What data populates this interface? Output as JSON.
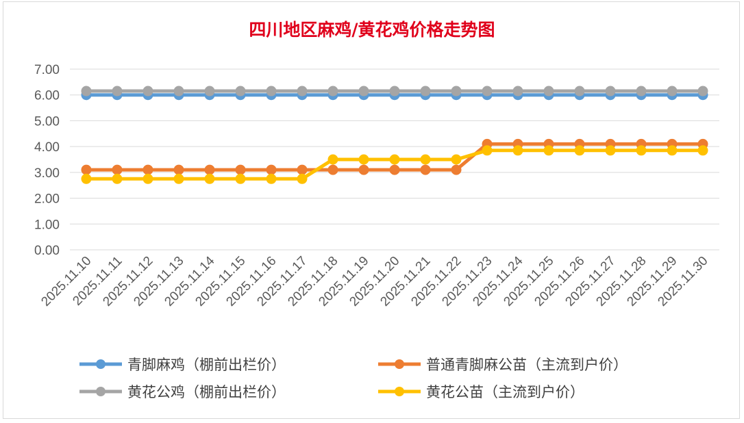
{
  "chart_data": {
    "type": "line",
    "title": "四川地区麻鸡/黄花鸡价格走势图",
    "xlabel": "",
    "ylabel": "",
    "ylim": [
      0,
      7
    ],
    "yticks": [
      "0.00",
      "1.00",
      "2.00",
      "3.00",
      "4.00",
      "5.00",
      "6.00",
      "7.00"
    ],
    "grid": "horizontal",
    "legend_position": "bottom",
    "categories": [
      "2025.11.10",
      "2025.11.11",
      "2025.11.12",
      "2025.11.13",
      "2025.11.14",
      "2025.11.15",
      "2025.11.16",
      "2025.11.17",
      "2025.11.18",
      "2025.11.19",
      "2025.11.20",
      "2025.11.21",
      "2025.11.22",
      "2025.11.23",
      "2025.11.24",
      "2025.11.25",
      "2025.11.26",
      "2025.11.27",
      "2025.11.28",
      "2025.11.29",
      "2025.11.30"
    ],
    "series": [
      {
        "name": "青脚麻鸡（棚前出栏价）",
        "color": "#5b9bd5",
        "values": [
          6.0,
          6.0,
          6.0,
          6.0,
          6.0,
          6.0,
          6.0,
          6.0,
          6.0,
          6.0,
          6.0,
          6.0,
          6.0,
          6.0,
          6.0,
          6.0,
          6.0,
          6.0,
          6.0,
          6.0,
          6.0
        ]
      },
      {
        "name": "普通青脚麻公苗（主流到户价）",
        "color": "#ed7d31",
        "values": [
          3.1,
          3.1,
          3.1,
          3.1,
          3.1,
          3.1,
          3.1,
          3.1,
          3.1,
          3.1,
          3.1,
          3.1,
          3.1,
          4.1,
          4.1,
          4.1,
          4.1,
          4.1,
          4.1,
          4.1,
          4.1
        ]
      },
      {
        "name": "黄花公鸡（棚前出栏价）",
        "color": "#a5a5a5",
        "values": [
          6.15,
          6.15,
          6.15,
          6.15,
          6.15,
          6.15,
          6.15,
          6.15,
          6.15,
          6.15,
          6.15,
          6.15,
          6.15,
          6.15,
          6.15,
          6.15,
          6.15,
          6.15,
          6.15,
          6.15,
          6.15
        ]
      },
      {
        "name": "黄花公苗（主流到户价）",
        "color": "#ffc000",
        "values": [
          2.75,
          2.75,
          2.75,
          2.75,
          2.75,
          2.75,
          2.75,
          2.75,
          3.5,
          3.5,
          3.5,
          3.5,
          3.5,
          3.85,
          3.85,
          3.85,
          3.85,
          3.85,
          3.85,
          3.85,
          3.85
        ]
      }
    ]
  }
}
